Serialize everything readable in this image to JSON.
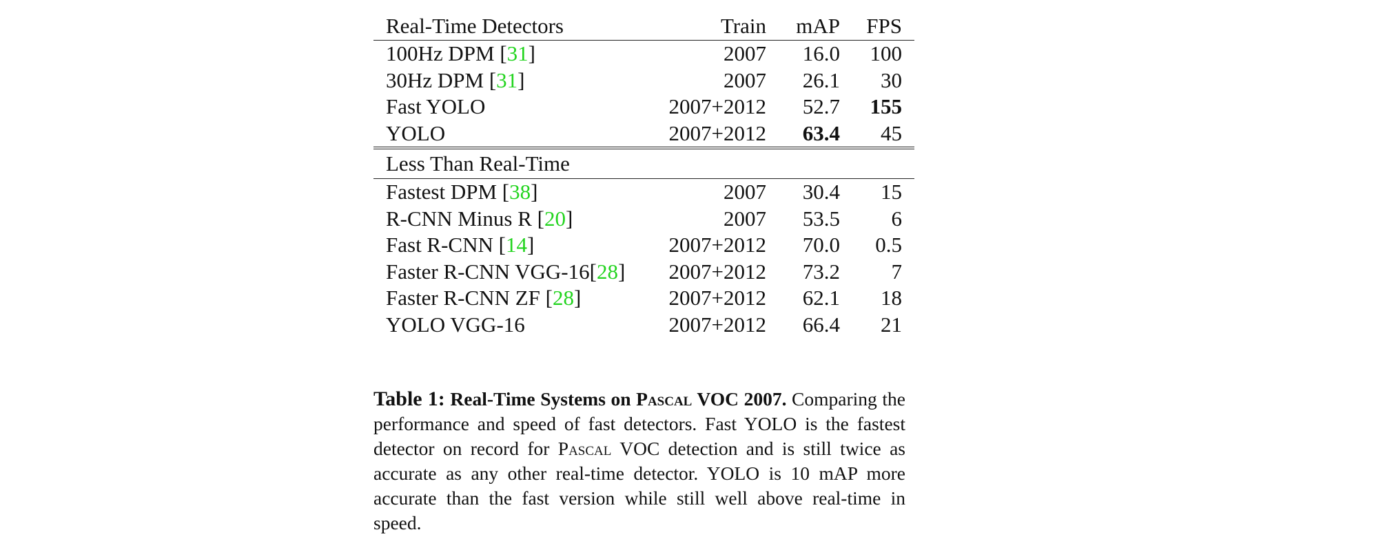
{
  "table": {
    "headers": {
      "name": "Real-Time Detectors",
      "train": "Train",
      "map": "mAP",
      "fps": "FPS"
    },
    "realtime_rows": [
      {
        "name": "100Hz DPM [",
        "cite": "31",
        "close": "]",
        "train": "2007",
        "map": "16.0",
        "fps": "100"
      },
      {
        "name": "30Hz DPM [",
        "cite": "31",
        "close": "]",
        "train": "2007",
        "map": "26.1",
        "fps": "30"
      },
      {
        "name": "Fast YOLO",
        "train": "2007+2012",
        "map": "52.7",
        "fps": "155"
      },
      {
        "name": "YOLO",
        "train": "2007+2012",
        "map": "63.4",
        "fps": "45"
      }
    ],
    "section2_title": "Less Than Real-Time",
    "slow_rows": [
      {
        "name": "Fastest DPM [",
        "cite": "38",
        "close": "]",
        "train": "2007",
        "map": "30.4",
        "fps": "15"
      },
      {
        "name": "R-CNN Minus R [",
        "cite": "20",
        "close": "]",
        "train": "2007",
        "map": "53.5",
        "fps": "6"
      },
      {
        "name": "Fast R-CNN [",
        "cite": "14",
        "close": "]",
        "train": "2007+2012",
        "map": "70.0",
        "fps": "0.5"
      },
      {
        "name": "Faster R-CNN VGG-16[",
        "cite": "28",
        "close": "]",
        "train": "2007+2012",
        "map": "73.2",
        "fps": "7"
      },
      {
        "name": "Faster R-CNN ZF [",
        "cite": "28",
        "close": "]",
        "train": "2007+2012",
        "map": "62.1",
        "fps": "18"
      },
      {
        "name": "YOLO VGG-16",
        "train": "2007+2012",
        "map": "66.4",
        "fps": "21"
      }
    ]
  },
  "caption": {
    "label": "Table 1:",
    "title_pre": "Real-Time Systems on ",
    "title_sc": "Pascal",
    "title_post": " VOC 2007.",
    "text_1": " Comparing the performance and speed of fast detectors.  Fast YOLO is the fastest detector on record for ",
    "text_sc": "Pascal",
    "text_2": " VOC detection and is still twice as accurate as any other real-time detector.  YOLO is 10 mAP more accurate than the fast version while still well above real-time in speed."
  },
  "colors": {
    "citation": "#22d41e",
    "text": "#111111",
    "rule": "#222222"
  }
}
